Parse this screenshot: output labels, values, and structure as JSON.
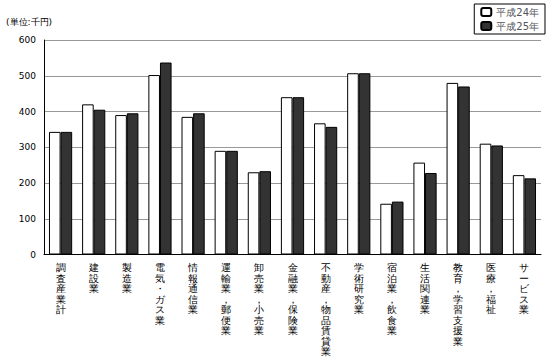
{
  "chart_data": {
    "type": "bar",
    "y_label": "(単位:千円)",
    "categories": [
      "調査産業計",
      "建設業",
      "製造業",
      "電気・ガス業",
      "情報通信業",
      "運輸業，郵便業",
      "卸売業，小売業",
      "金融業，保険業",
      "不動産，物品賃貸業",
      "学術研究業",
      "宿泊業，飲食業",
      "生活関連業",
      "教育，学習支援業",
      "医療，福祉",
      "サービス業"
    ],
    "series": [
      {
        "name": "平成24年",
        "color": "#ffffff",
        "values": [
          343,
          420,
          390,
          502,
          385,
          290,
          230,
          440,
          367,
          507,
          142,
          257,
          480,
          310,
          222
        ]
      },
      {
        "name": "平成25年",
        "color": "#333333",
        "values": [
          343,
          405,
          395,
          537,
          395,
          290,
          233,
          440,
          357,
          507,
          148,
          228,
          470,
          305,
          213
        ]
      }
    ],
    "ylim": [
      0,
      600
    ],
    "yticks": [
      0,
      100,
      200,
      300,
      400,
      500,
      600
    ],
    "grid": true,
    "legend": "top-right"
  }
}
